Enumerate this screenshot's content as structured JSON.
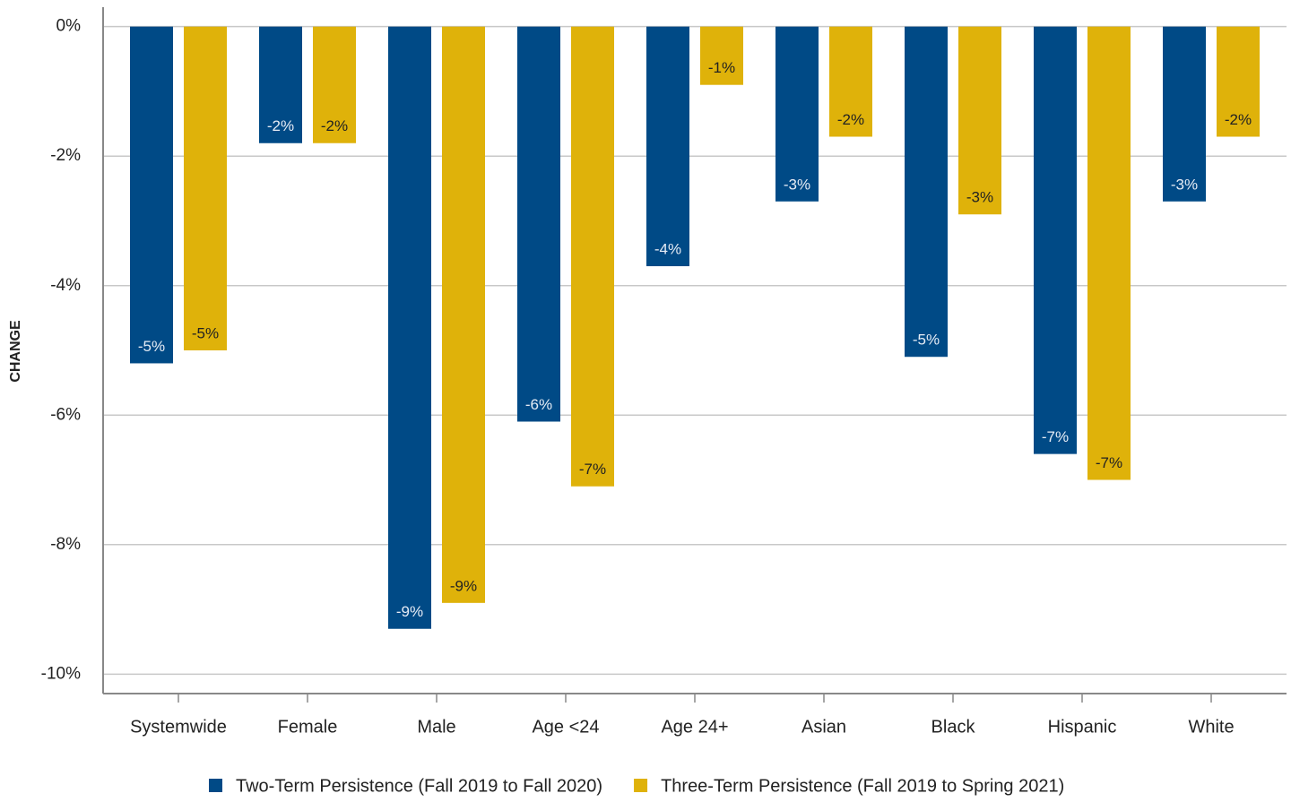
{
  "chart_data": {
    "type": "bar",
    "y_label": "CHANGE",
    "categories": [
      "Systemwide",
      "Female",
      "Male",
      "Age <24",
      "Age 24+",
      "Asian",
      "Black",
      "Hispanic",
      "White"
    ],
    "series": [
      {
        "name": "Two-Term Persistence (Fall 2019 to Fall 2020)",
        "color": "#004a86",
        "values": [
          -5.2,
          -1.8,
          -9.3,
          -6.1,
          -3.7,
          -2.7,
          -5.1,
          -6.6,
          -2.7
        ],
        "value_labels": [
          "-5%",
          "-2%",
          "-9%",
          "-6%",
          "-4%",
          "-3%",
          "-5%",
          "-7%",
          "-3%"
        ]
      },
      {
        "name": "Three-Term Persistence (Fall 2019 to Spring 2021)",
        "color": "#dfb20a",
        "values": [
          -5.0,
          -1.8,
          -8.9,
          -7.1,
          -0.9,
          -1.7,
          -2.9,
          -7.0,
          -1.7
        ],
        "value_labels": [
          "-5%",
          "-2%",
          "-9%",
          "-7%",
          "-1%",
          "-2%",
          "-3%",
          "-7%",
          "-2%"
        ]
      }
    ],
    "ylim": [
      -10.3,
      0.3
    ],
    "yticks": [
      {
        "value": 0,
        "label": "0%"
      },
      {
        "value": -2,
        "label": "-2%"
      },
      {
        "value": -4,
        "label": "-4%"
      },
      {
        "value": -6,
        "label": "-6%"
      },
      {
        "value": -8,
        "label": "-8%"
      },
      {
        "value": -10,
        "label": "-10%"
      }
    ],
    "grid": true,
    "legend": "bottom"
  }
}
